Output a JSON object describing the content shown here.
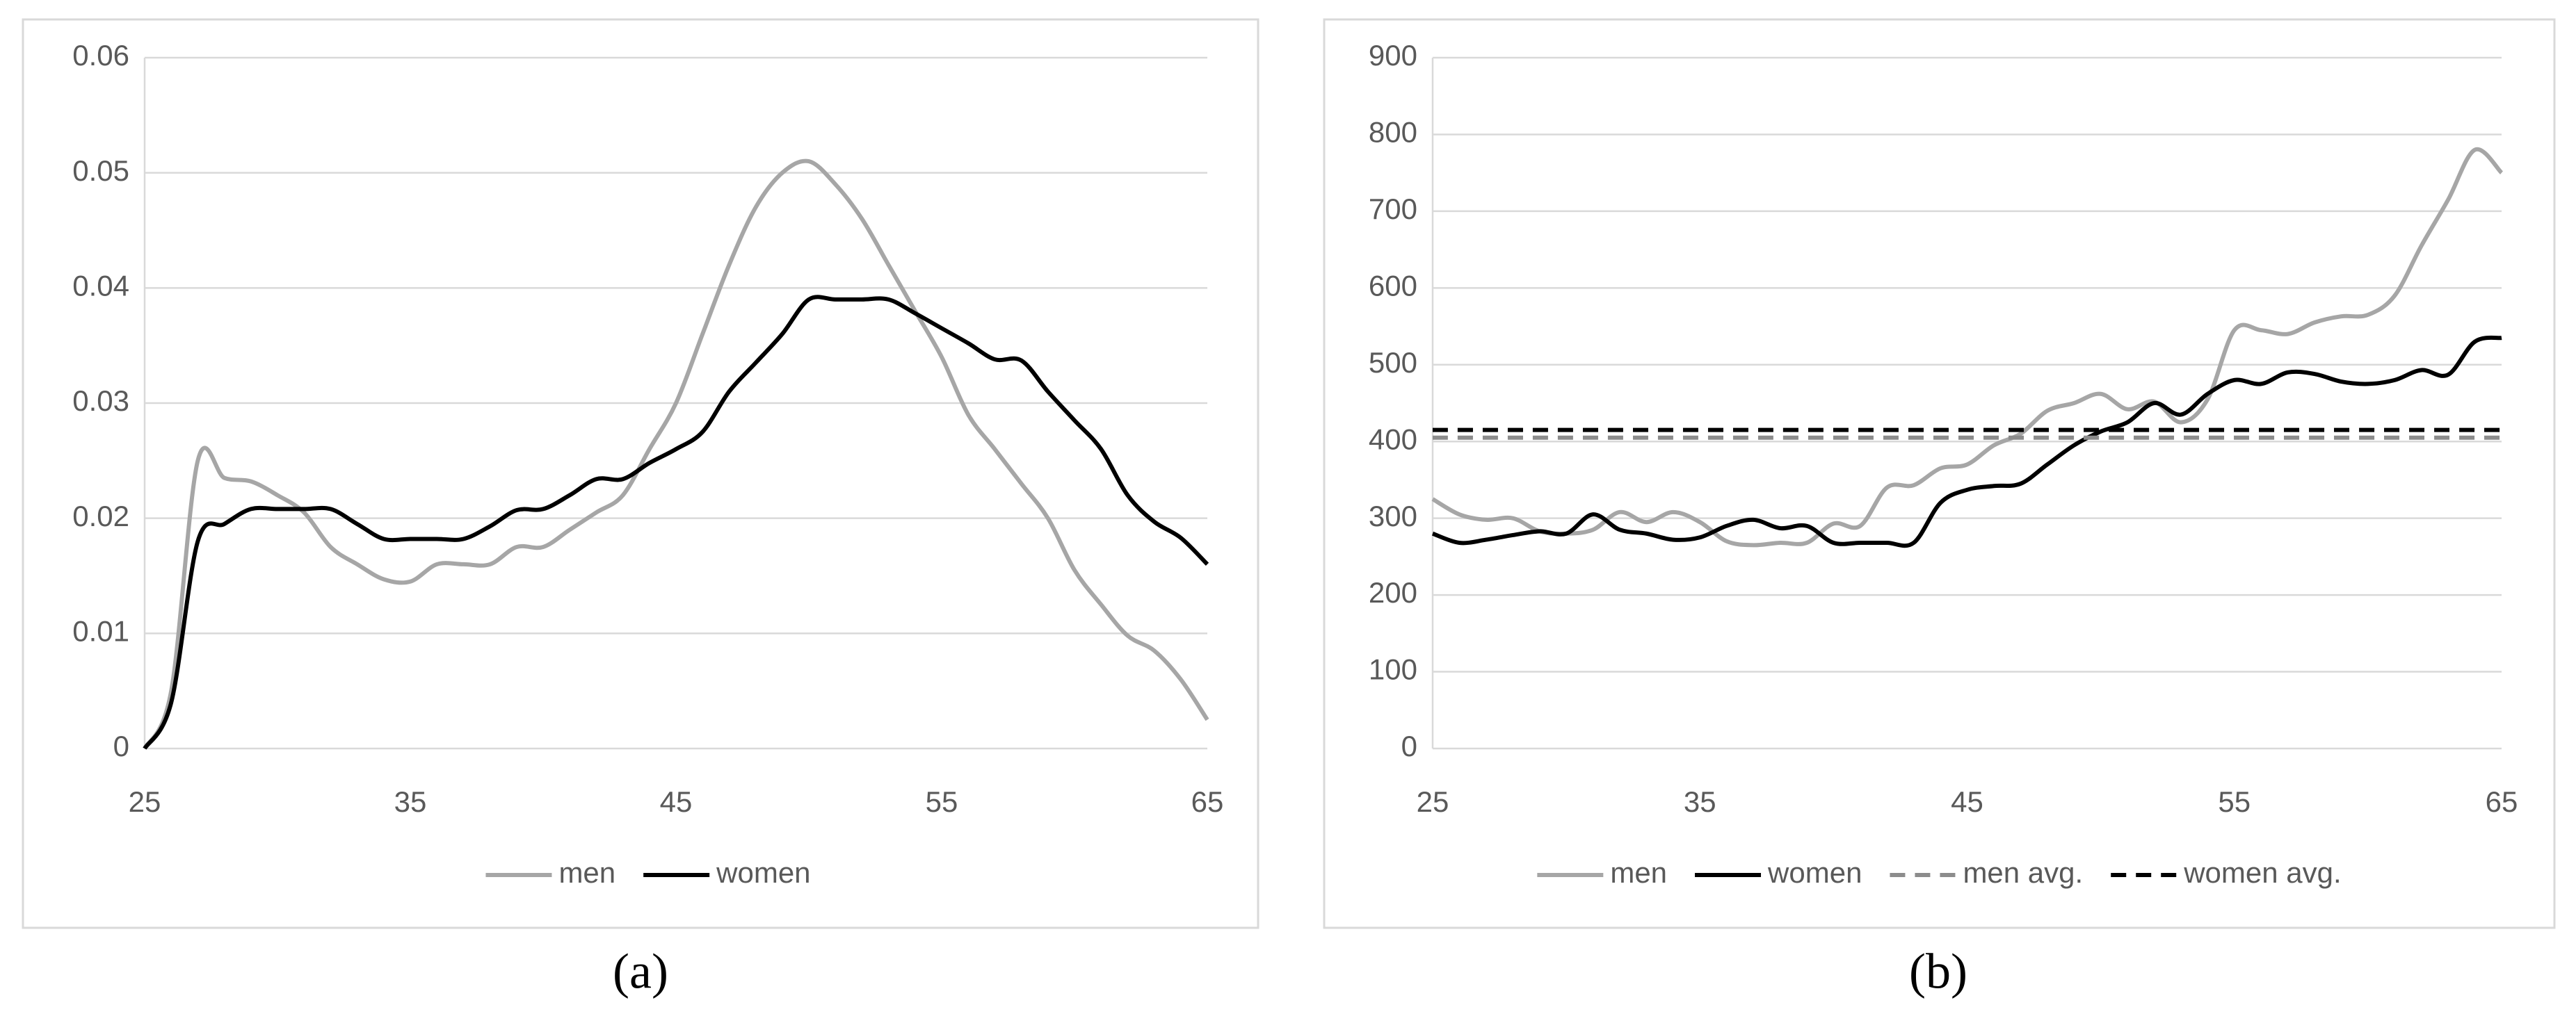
{
  "chart_data": [
    {
      "type": "line",
      "caption": "(a)",
      "x": [
        25,
        26,
        27,
        28,
        29,
        30,
        31,
        32,
        33,
        34,
        35,
        36,
        37,
        38,
        39,
        40,
        41,
        42,
        43,
        44,
        45,
        46,
        47,
        48,
        49,
        50,
        51,
        52,
        53,
        54,
        55,
        56,
        57,
        58,
        59,
        60,
        61,
        62,
        63,
        64,
        65
      ],
      "xlim": [
        25,
        65
      ],
      "xticks": [
        25,
        35,
        45,
        55,
        65
      ],
      "ylim": [
        0,
        0.06
      ],
      "yticks": [
        0,
        0.01,
        0.02,
        0.03,
        0.04,
        0.05,
        0.06
      ],
      "grid": true,
      "series": [
        {
          "name": "men",
          "color": "#a6a6a6",
          "values": [
            0,
            0.005,
            0.025,
            0.0235,
            0.0232,
            0.022,
            0.0205,
            0.0175,
            0.016,
            0.0147,
            0.0145,
            0.016,
            0.016,
            0.016,
            0.0175,
            0.0175,
            0.019,
            0.0205,
            0.022,
            0.026,
            0.03,
            0.036,
            0.042,
            0.047,
            0.05,
            0.051,
            0.049,
            0.046,
            0.042,
            0.038,
            0.034,
            0.029,
            0.026,
            0.023,
            0.02,
            0.0155,
            0.0125,
            0.0098,
            0.0085,
            0.006,
            0.0025
          ]
        },
        {
          "name": "women",
          "color": "#000000",
          "values": [
            0,
            0.004,
            0.018,
            0.0195,
            0.0208,
            0.0208,
            0.0208,
            0.0208,
            0.0195,
            0.0182,
            0.0182,
            0.0182,
            0.0182,
            0.0193,
            0.0207,
            0.0208,
            0.022,
            0.0234,
            0.0234,
            0.0248,
            0.026,
            0.0275,
            0.031,
            0.0335,
            0.036,
            0.039,
            0.039,
            0.039,
            0.039,
            0.0378,
            0.0365,
            0.0352,
            0.0338,
            0.0337,
            0.031,
            0.0285,
            0.026,
            0.022,
            0.0197,
            0.0183,
            0.016
          ]
        }
      ]
    },
    {
      "type": "line",
      "caption": "(b)",
      "x": [
        25,
        26,
        27,
        28,
        29,
        30,
        31,
        32,
        33,
        34,
        35,
        36,
        37,
        38,
        39,
        40,
        41,
        42,
        43,
        44,
        45,
        46,
        47,
        48,
        49,
        50,
        51,
        52,
        53,
        54,
        55,
        56,
        57,
        58,
        59,
        60,
        61,
        62,
        63,
        64,
        65
      ],
      "xlim": [
        25,
        65
      ],
      "xticks": [
        25,
        35,
        45,
        55,
        65
      ],
      "ylim": [
        0,
        900
      ],
      "yticks": [
        0,
        100,
        200,
        300,
        400,
        500,
        600,
        700,
        800,
        900
      ],
      "grid": true,
      "series": [
        {
          "name": "men",
          "color": "#a6a6a6",
          "values": [
            325,
            305,
            298,
            300,
            283,
            280,
            285,
            308,
            295,
            308,
            295,
            270,
            265,
            268,
            268,
            293,
            290,
            340,
            343,
            365,
            370,
            395,
            410,
            440,
            450,
            462,
            442,
            452,
            425,
            455,
            545,
            545,
            540,
            555,
            563,
            565,
            590,
            655,
            715,
            780,
            750
          ]
        },
        {
          "name": "women",
          "color": "#000000",
          "values": [
            280,
            268,
            272,
            278,
            283,
            280,
            305,
            285,
            280,
            272,
            275,
            290,
            298,
            287,
            290,
            268,
            268,
            268,
            268,
            320,
            337,
            342,
            345,
            370,
            395,
            413,
            425,
            450,
            435,
            462,
            480,
            475,
            490,
            488,
            478,
            475,
            480,
            493,
            487,
            530,
            535
          ]
        },
        {
          "name": "men avg.",
          "color": "#8c8c8c",
          "dashed": true,
          "x": [
            25,
            65
          ],
          "values": [
            405,
            405
          ]
        },
        {
          "name": "women avg.",
          "color": "#000000",
          "dashed": true,
          "x": [
            25,
            65
          ],
          "values": [
            415,
            415
          ]
        }
      ]
    }
  ]
}
